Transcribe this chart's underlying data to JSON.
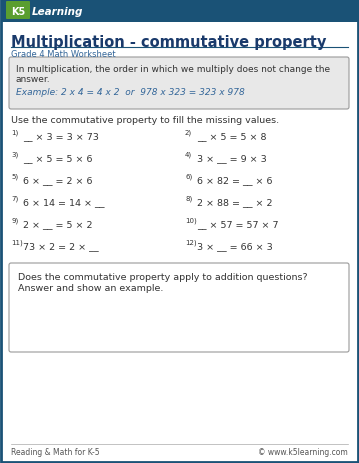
{
  "title": "Multiplication - commutative property",
  "subtitle": "Grade 4 Math Worksheet",
  "bg_color": "#f5f5f5",
  "page_bg": "#ffffff",
  "border_color": "#1a5276",
  "header_bg": "#1a5276",
  "definition_box_color": "#e8e8e8",
  "definition_line1": "In multiplication, the order in which we multiply does not change the",
  "definition_line2": "answer.",
  "example_text": "Example: 2 x 4 = 4 x 2  or  978 x 323 = 323 x 978",
  "instruction": "Use the commutative property to fill the missing values.",
  "problems_left": [
    [
      "1)",
      "__ × 3 = 3 × 73"
    ],
    [
      "3)",
      "__ × 5 = 5 × 6"
    ],
    [
      "5)",
      "6 × __ = 2 × 6"
    ],
    [
      "7)",
      "6 × 14 = 14 × __"
    ],
    [
      "9)",
      "2 × __ = 5 × 2"
    ],
    [
      "11)",
      "73 × 2 = 2 × __"
    ]
  ],
  "problems_right": [
    [
      "2)",
      "__ × 5 = 5 × 8"
    ],
    [
      "4)",
      "3 × __ = 9 × 3"
    ],
    [
      "6)",
      "6 × 82 = __ × 6"
    ],
    [
      "8)",
      "2 × 88 = __ × 2"
    ],
    [
      "10)",
      "__ × 57 = 57 × 7"
    ],
    [
      "12)",
      "3 × __ = 66 × 3"
    ]
  ],
  "bonus_text_line1": "Does the commutative property apply to addition questions?",
  "bonus_text_line2": "Answer and show an example.",
  "footer_left": "Reading & Math for K-5",
  "footer_right": "© www.k5learning.com",
  "outer_border_color": "#1a5276",
  "inner_border_color": "#999999",
  "text_color": "#333333",
  "blue_text": "#336699",
  "title_color": "#1a3a6b",
  "subtitle_color": "#336699",
  "num_superscript_color": "#555555"
}
